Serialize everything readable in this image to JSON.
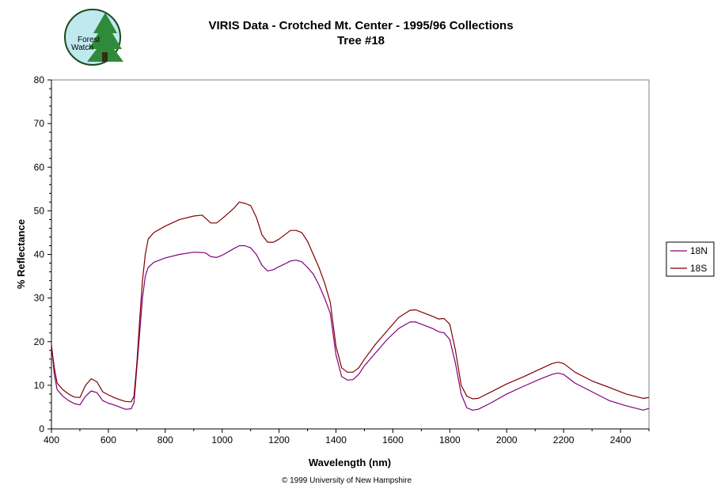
{
  "logo": {
    "text_line1": "Forest",
    "text_line2": "Watch",
    "colors": {
      "circle": "#bfe9ee",
      "tree": "#2f8a3a",
      "ring": "#1a4a1a"
    }
  },
  "chart_data": {
    "type": "line",
    "title": "VIRIS Data - Crotched Mt. Center - 1995/96 Collections",
    "subtitle": "Tree #18",
    "xlabel": "Wavelength (nm)",
    "ylabel": "% Reflectance",
    "xlim": [
      400,
      2500
    ],
    "ylim": [
      0,
      80
    ],
    "x_ticks": [
      "400",
      "600",
      "800",
      "1000",
      "1200",
      "1400",
      "1600",
      "1800",
      "2000",
      "2200",
      "2400"
    ],
    "y_ticks": [
      "0",
      "10",
      "20",
      "30",
      "40",
      "50",
      "60",
      "70",
      "80"
    ],
    "grid": false,
    "legend_position": "right",
    "footer": "© 1999 University of New Hampshire",
    "series": [
      {
        "name": "18N",
        "color": "#800080",
        "points": [
          [
            400,
            19.5
          ],
          [
            410,
            12.5
          ],
          [
            420,
            9
          ],
          [
            440,
            7.5
          ],
          [
            460,
            6.5
          ],
          [
            480,
            5.8
          ],
          [
            500,
            5.5
          ],
          [
            520,
            7.5
          ],
          [
            540,
            8.7
          ],
          [
            560,
            8.3
          ],
          [
            580,
            6.5
          ],
          [
            600,
            5.9
          ],
          [
            620,
            5.5
          ],
          [
            640,
            5
          ],
          [
            660,
            4.5
          ],
          [
            680,
            4.6
          ],
          [
            690,
            6
          ],
          [
            700,
            14
          ],
          [
            710,
            22
          ],
          [
            720,
            30
          ],
          [
            730,
            35
          ],
          [
            740,
            37
          ],
          [
            760,
            38.2
          ],
          [
            800,
            39.2
          ],
          [
            850,
            40
          ],
          [
            900,
            40.5
          ],
          [
            940,
            40.4
          ],
          [
            960,
            39.5
          ],
          [
            980,
            39.3
          ],
          [
            1000,
            39.8
          ],
          [
            1040,
            41.3
          ],
          [
            1060,
            42
          ],
          [
            1080,
            42
          ],
          [
            1100,
            41.5
          ],
          [
            1120,
            40
          ],
          [
            1140,
            37.5
          ],
          [
            1160,
            36.2
          ],
          [
            1180,
            36.5
          ],
          [
            1200,
            37.2
          ],
          [
            1220,
            37.8
          ],
          [
            1240,
            38.5
          ],
          [
            1260,
            38.7
          ],
          [
            1280,
            38.3
          ],
          [
            1300,
            37
          ],
          [
            1320,
            35.5
          ],
          [
            1340,
            33
          ],
          [
            1360,
            30
          ],
          [
            1380,
            26.5
          ],
          [
            1400,
            17
          ],
          [
            1420,
            12
          ],
          [
            1440,
            11.2
          ],
          [
            1460,
            11.3
          ],
          [
            1480,
            12.5
          ],
          [
            1500,
            14.5
          ],
          [
            1540,
            17.5
          ],
          [
            1580,
            20.5
          ],
          [
            1620,
            23
          ],
          [
            1660,
            24.5
          ],
          [
            1680,
            24.5
          ],
          [
            1700,
            24
          ],
          [
            1740,
            23
          ],
          [
            1760,
            22.3
          ],
          [
            1780,
            22
          ],
          [
            1800,
            20.5
          ],
          [
            1820,
            15
          ],
          [
            1840,
            8
          ],
          [
            1860,
            4.8
          ],
          [
            1880,
            4.3
          ],
          [
            1900,
            4.5
          ],
          [
            1940,
            5.8
          ],
          [
            2000,
            8
          ],
          [
            2060,
            9.8
          ],
          [
            2120,
            11.5
          ],
          [
            2160,
            12.5
          ],
          [
            2180,
            12.8
          ],
          [
            2200,
            12.5
          ],
          [
            2240,
            10.5
          ],
          [
            2300,
            8.5
          ],
          [
            2360,
            6.5
          ],
          [
            2420,
            5.3
          ],
          [
            2480,
            4.3
          ],
          [
            2500,
            4.7
          ]
        ]
      },
      {
        "name": "18S",
        "color": "#800000",
        "points": [
          [
            400,
            19
          ],
          [
            410,
            14
          ],
          [
            420,
            10.5
          ],
          [
            440,
            9
          ],
          [
            460,
            8
          ],
          [
            480,
            7.3
          ],
          [
            500,
            7.2
          ],
          [
            520,
            10
          ],
          [
            540,
            11.5
          ],
          [
            560,
            10.8
          ],
          [
            580,
            8.5
          ],
          [
            600,
            7.8
          ],
          [
            620,
            7.2
          ],
          [
            640,
            6.7
          ],
          [
            660,
            6.3
          ],
          [
            680,
            6.2
          ],
          [
            690,
            7.5
          ],
          [
            700,
            15
          ],
          [
            710,
            25
          ],
          [
            720,
            34
          ],
          [
            730,
            40
          ],
          [
            740,
            43.5
          ],
          [
            760,
            45
          ],
          [
            800,
            46.5
          ],
          [
            850,
            48
          ],
          [
            900,
            48.8
          ],
          [
            930,
            49
          ],
          [
            960,
            47.2
          ],
          [
            980,
            47.2
          ],
          [
            1000,
            48.2
          ],
          [
            1040,
            50.5
          ],
          [
            1060,
            52
          ],
          [
            1080,
            51.7
          ],
          [
            1100,
            51.2
          ],
          [
            1120,
            48.5
          ],
          [
            1140,
            44.5
          ],
          [
            1160,
            42.8
          ],
          [
            1180,
            42.8
          ],
          [
            1200,
            43.5
          ],
          [
            1220,
            44.5
          ],
          [
            1240,
            45.5
          ],
          [
            1260,
            45.5
          ],
          [
            1280,
            45
          ],
          [
            1300,
            43
          ],
          [
            1320,
            40
          ],
          [
            1340,
            37
          ],
          [
            1360,
            33.5
          ],
          [
            1380,
            29
          ],
          [
            1400,
            19
          ],
          [
            1420,
            14
          ],
          [
            1440,
            13
          ],
          [
            1460,
            13
          ],
          [
            1480,
            14
          ],
          [
            1500,
            16
          ],
          [
            1540,
            19.5
          ],
          [
            1580,
            22.5
          ],
          [
            1620,
            25.5
          ],
          [
            1660,
            27.2
          ],
          [
            1680,
            27.3
          ],
          [
            1700,
            26.8
          ],
          [
            1740,
            25.8
          ],
          [
            1760,
            25.2
          ],
          [
            1780,
            25.3
          ],
          [
            1800,
            24
          ],
          [
            1820,
            18
          ],
          [
            1840,
            10
          ],
          [
            1860,
            7.5
          ],
          [
            1880,
            6.9
          ],
          [
            1900,
            7
          ],
          [
            1940,
            8.3
          ],
          [
            2000,
            10.3
          ],
          [
            2060,
            12
          ],
          [
            2120,
            13.8
          ],
          [
            2160,
            15
          ],
          [
            2180,
            15.3
          ],
          [
            2200,
            15
          ],
          [
            2240,
            13
          ],
          [
            2300,
            11
          ],
          [
            2360,
            9.5
          ],
          [
            2420,
            8
          ],
          [
            2480,
            7
          ],
          [
            2500,
            7.2
          ]
        ]
      }
    ]
  }
}
